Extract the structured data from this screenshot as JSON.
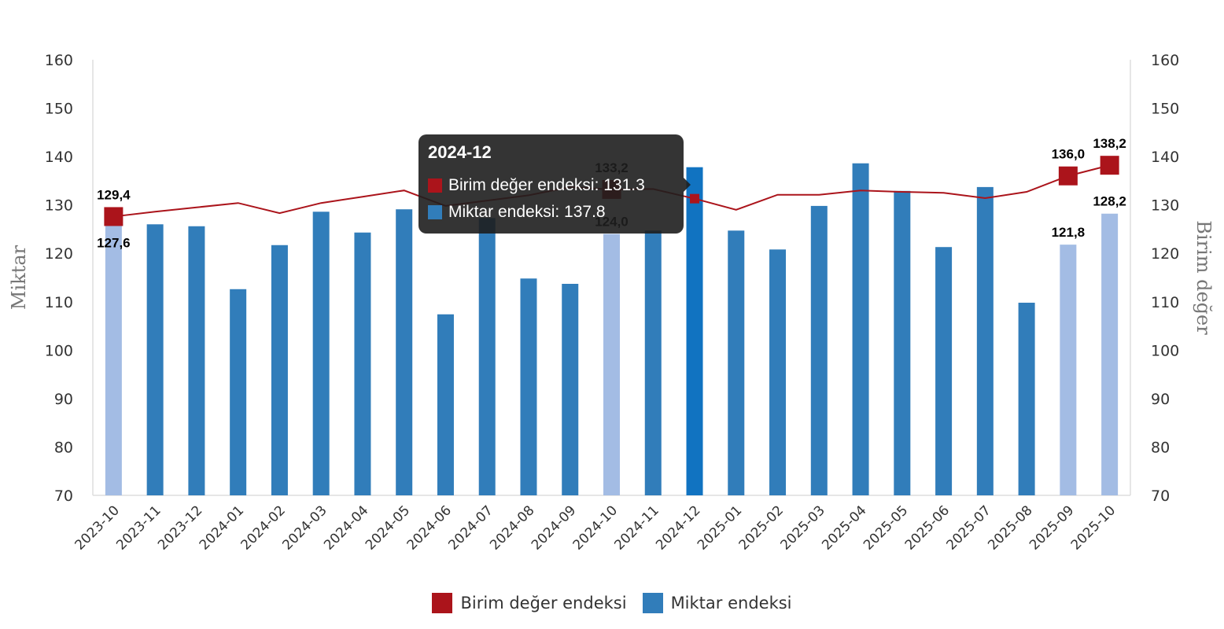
{
  "chart_data": {
    "type": "bar-line",
    "categories": [
      "2023-10",
      "2023-11",
      "2023-12",
      "2024-01",
      "2024-02",
      "2024-03",
      "2024-04",
      "2024-05",
      "2024-06",
      "2024-07",
      "2024-08",
      "2024-09",
      "2024-10",
      "2024-11",
      "2024-12",
      "2025-01",
      "2025-02",
      "2025-03",
      "2025-04",
      "2025-05",
      "2025-06",
      "2025-07",
      "2025-08",
      "2025-09",
      "2025-10"
    ],
    "series": [
      {
        "name": "Birim değer endeksi",
        "type": "line",
        "axis": "right",
        "color": "#ab141b",
        "values": [
          127.6,
          128.6,
          129.5,
          130.4,
          128.3,
          130.4,
          131.7,
          133.0,
          129.8,
          130.9,
          132.0,
          133.7,
          133.2,
          133.3,
          131.3,
          129.0,
          132.1,
          132.1,
          133.0,
          132.7,
          132.5,
          131.4,
          132.7,
          136.0,
          138.2
        ]
      },
      {
        "name": "Miktar endeksi",
        "type": "bar",
        "axis": "left",
        "color": "#317dba",
        "highlight_color": "#a3bce4",
        "values": [
          129.4,
          126.0,
          125.6,
          112.6,
          121.7,
          128.6,
          124.3,
          129.1,
          107.4,
          127.3,
          114.8,
          113.7,
          124.0,
          124.7,
          137.8,
          124.7,
          120.8,
          129.8,
          138.6,
          132.9,
          121.3,
          133.7,
          109.8,
          121.8,
          128.2
        ]
      }
    ],
    "highlighted_indices": [
      0,
      12,
      23,
      24
    ],
    "data_labels": [
      {
        "index": 0,
        "top": "129,4",
        "bottom": "127,6"
      },
      {
        "index": 12,
        "top": "133,2",
        "bottom": "124,0"
      },
      {
        "index": 23,
        "top": "136,0",
        "bottom": "121,8"
      },
      {
        "index": 24,
        "top": "138,2",
        "bottom": "128,2"
      }
    ],
    "ylabel": "Miktar",
    "y2label": "Birim değer",
    "ylim": [
      70,
      160
    ],
    "y2lim": [
      70,
      160
    ],
    "yticks": [
      "70",
      "80",
      "90",
      "100",
      "110",
      "120",
      "130",
      "140",
      "150",
      "160"
    ],
    "grid": false,
    "legend_position": "bottom"
  },
  "tooltip": {
    "title": "2024-12",
    "hover_index": 14,
    "rows": [
      {
        "label": "Birim değer endeksi: 131.3",
        "color": "#ab141b"
      },
      {
        "label": "Miktar endeksi: 137.8",
        "color": "#317dba"
      }
    ]
  },
  "legend": [
    {
      "label": "Birim değer endeksi",
      "color": "#ab141b"
    },
    {
      "label": "Miktar endeksi",
      "color": "#317dba"
    }
  ]
}
